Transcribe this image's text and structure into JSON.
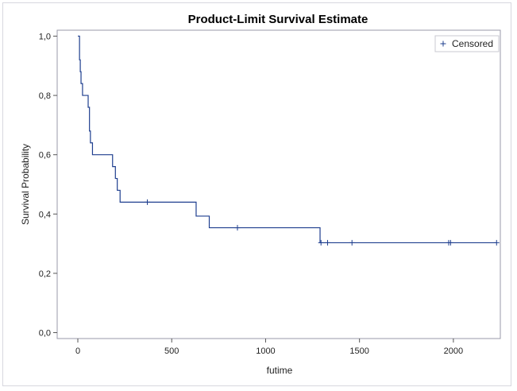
{
  "chart_data": {
    "type": "line",
    "title": "Product-Limit Survival Estimate",
    "xlabel": "futime",
    "ylabel": "Survival Probability",
    "xlim": [
      -110,
      2250
    ],
    "ylim": [
      -0.02,
      1.02
    ],
    "xticks": [
      0,
      500,
      1000,
      1500,
      2000
    ],
    "xtick_labels": [
      "0",
      "500",
      "1000",
      "1500",
      "2000"
    ],
    "yticks": [
      0,
      0.2,
      0.4,
      0.6,
      0.8,
      1.0
    ],
    "ytick_labels": [
      "0,0",
      "0,2",
      "0,4",
      "0,6",
      "0,8",
      "1,0"
    ],
    "grid": false,
    "legend": {
      "position": "top-right",
      "entries": [
        "Censored"
      ],
      "marker": "+"
    },
    "series_color": "#1f3f8f",
    "survival_steps": [
      {
        "time": 0,
        "survival": 1.0
      },
      {
        "time": 9,
        "survival": 0.92
      },
      {
        "time": 13,
        "survival": 0.88
      },
      {
        "time": 17,
        "survival": 0.84
      },
      {
        "time": 25,
        "survival": 0.8
      },
      {
        "time": 55,
        "survival": 0.76
      },
      {
        "time": 62,
        "survival": 0.68
      },
      {
        "time": 67,
        "survival": 0.64
      },
      {
        "time": 78,
        "survival": 0.6
      },
      {
        "time": 185,
        "survival": 0.56
      },
      {
        "time": 200,
        "survival": 0.52
      },
      {
        "time": 210,
        "survival": 0.48
      },
      {
        "time": 225,
        "survival": 0.44
      },
      {
        "time": 630,
        "survival": 0.3929
      },
      {
        "time": 700,
        "survival": 0.3537
      },
      {
        "time": 1290,
        "survival": 0.3032
      }
    ],
    "censored": [
      {
        "time": 370,
        "survival": 0.44
      },
      {
        "time": 850,
        "survival": 0.3537
      },
      {
        "time": 1295,
        "survival": 0.3032
      },
      {
        "time": 1330,
        "survival": 0.3032
      },
      {
        "time": 1460,
        "survival": 0.3032
      },
      {
        "time": 1975,
        "survival": 0.3032
      },
      {
        "time": 1985,
        "survival": 0.3032
      },
      {
        "time": 2230,
        "survival": 0.3032
      }
    ],
    "end_time": 2230
  }
}
